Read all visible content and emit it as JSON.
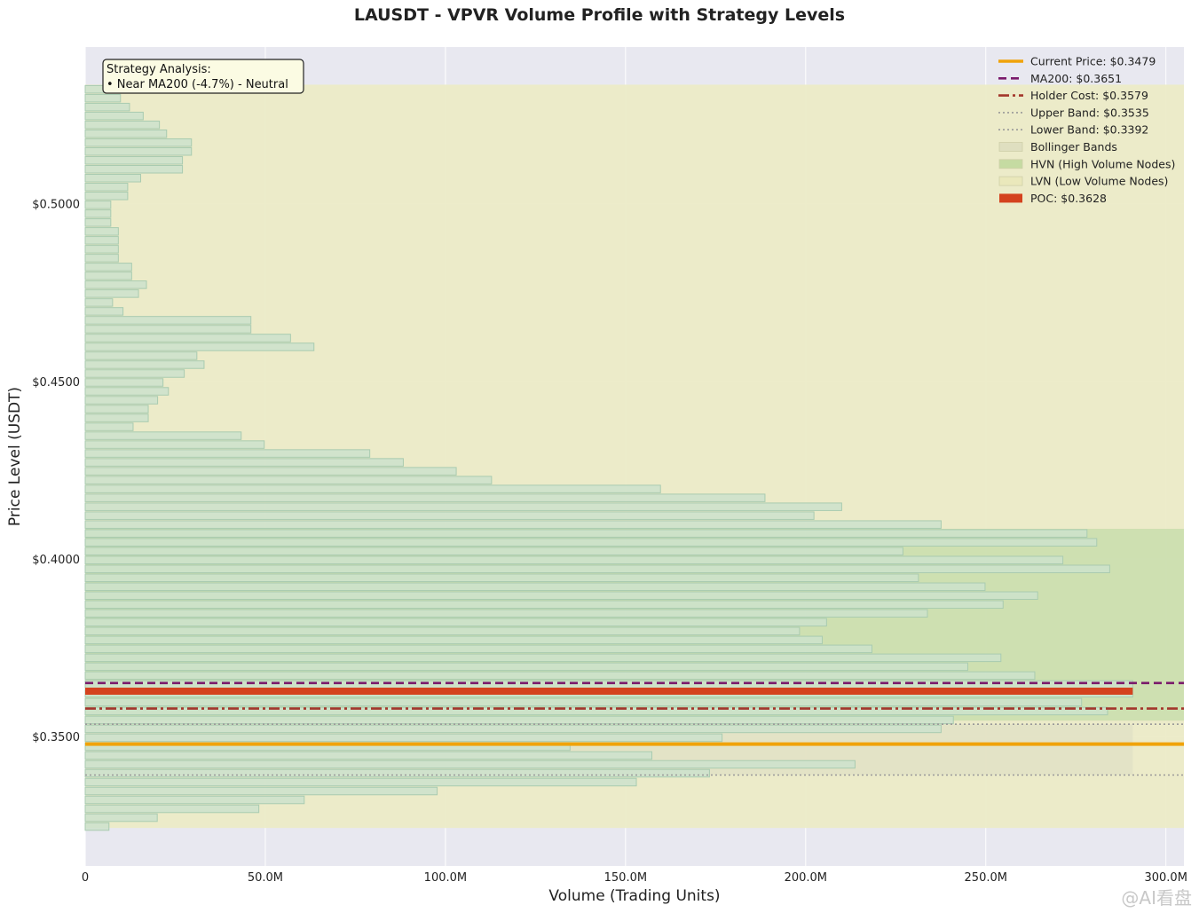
{
  "title": "LAUSDT - VPVR Volume Profile with Strategy Levels",
  "watermark": "@AI看盘",
  "chart_data": {
    "type": "bar",
    "orientation": "horizontal",
    "title": "LAUSDT - VPVR Volume Profile with Strategy Levels",
    "xlabel": "Volume (Trading Units)",
    "ylabel": "Price Level (USDT)",
    "xlim": [
      0,
      305000000
    ],
    "ylim": [
      0.3136,
      0.5441
    ],
    "x_ticks": [
      0,
      50000000,
      100000000,
      150000000,
      200000000,
      250000000,
      300000000
    ],
    "x_tick_labels": [
      "0",
      "50.0M",
      "100.0M",
      "150.0M",
      "200.0M",
      "250.0M",
      "300.0M"
    ],
    "y_ticks": [
      0.35,
      0.4,
      0.45,
      0.5
    ],
    "y_tick_labels": [
      "$0.3500",
      "$0.4000",
      "$0.4500",
      "$0.5000"
    ],
    "grid": true,
    "legend_position": "top-right",
    "bin_height": 0.0025,
    "bins": [
      {
        "price": 0.5322,
        "volume": 6800000
      },
      {
        "price": 0.5297,
        "volume": 9800000
      },
      {
        "price": 0.5272,
        "volume": 12300000
      },
      {
        "price": 0.5247,
        "volume": 16100000
      },
      {
        "price": 0.5222,
        "volume": 20600000
      },
      {
        "price": 0.5197,
        "volume": 22600000
      },
      {
        "price": 0.5172,
        "volume": 29500000
      },
      {
        "price": 0.5147,
        "volume": 29500000
      },
      {
        "price": 0.5122,
        "volume": 27000000
      },
      {
        "price": 0.5097,
        "volume": 27000000
      },
      {
        "price": 0.5072,
        "volume": 15400000
      },
      {
        "price": 0.5047,
        "volume": 11800000
      },
      {
        "price": 0.5022,
        "volume": 11800000
      },
      {
        "price": 0.4997,
        "volume": 7100000
      },
      {
        "price": 0.4972,
        "volume": 7100000
      },
      {
        "price": 0.4947,
        "volume": 7100000
      },
      {
        "price": 0.4922,
        "volume": 9200000
      },
      {
        "price": 0.4897,
        "volume": 9200000
      },
      {
        "price": 0.4872,
        "volume": 9200000
      },
      {
        "price": 0.4847,
        "volume": 9200000
      },
      {
        "price": 0.4822,
        "volume": 12900000
      },
      {
        "price": 0.4797,
        "volume": 12900000
      },
      {
        "price": 0.4772,
        "volume": 17000000
      },
      {
        "price": 0.4747,
        "volume": 14800000
      },
      {
        "price": 0.4722,
        "volume": 7600000
      },
      {
        "price": 0.4697,
        "volume": 10500000
      },
      {
        "price": 0.4672,
        "volume": 46000000
      },
      {
        "price": 0.4647,
        "volume": 46000000
      },
      {
        "price": 0.4622,
        "volume": 57000000
      },
      {
        "price": 0.4597,
        "volume": 63500000
      },
      {
        "price": 0.4572,
        "volume": 31000000
      },
      {
        "price": 0.4547,
        "volume": 33000000
      },
      {
        "price": 0.4522,
        "volume": 27500000
      },
      {
        "price": 0.4497,
        "volume": 21600000
      },
      {
        "price": 0.4472,
        "volume": 23100000
      },
      {
        "price": 0.4447,
        "volume": 20100000
      },
      {
        "price": 0.4422,
        "volume": 17500000
      },
      {
        "price": 0.4397,
        "volume": 17500000
      },
      {
        "price": 0.4372,
        "volume": 13300000
      },
      {
        "price": 0.4347,
        "volume": 43300000
      },
      {
        "price": 0.4322,
        "volume": 49700000
      },
      {
        "price": 0.4297,
        "volume": 79000000
      },
      {
        "price": 0.4272,
        "volume": 88300000
      },
      {
        "price": 0.4247,
        "volume": 103000000
      },
      {
        "price": 0.4222,
        "volume": 112800000
      },
      {
        "price": 0.4197,
        "volume": 159700000
      },
      {
        "price": 0.4172,
        "volume": 188700000
      },
      {
        "price": 0.4147,
        "volume": 210000000
      },
      {
        "price": 0.4122,
        "volume": 202300000
      },
      {
        "price": 0.4097,
        "volume": 237600000
      },
      {
        "price": 0.4072,
        "volume": 278100000
      },
      {
        "price": 0.4047,
        "volume": 280800000
      },
      {
        "price": 0.4022,
        "volume": 227000000
      },
      {
        "price": 0.3997,
        "volume": 271400000
      },
      {
        "price": 0.3972,
        "volume": 284400000
      },
      {
        "price": 0.3947,
        "volume": 231300000
      },
      {
        "price": 0.3922,
        "volume": 249800000
      },
      {
        "price": 0.3897,
        "volume": 264400000
      },
      {
        "price": 0.3872,
        "volume": 254800000
      },
      {
        "price": 0.3847,
        "volume": 233800000
      },
      {
        "price": 0.3822,
        "volume": 205800000
      },
      {
        "price": 0.3797,
        "volume": 198300000
      },
      {
        "price": 0.3772,
        "volume": 204600000
      },
      {
        "price": 0.3747,
        "volume": 218400000
      },
      {
        "price": 0.3722,
        "volume": 254200000
      },
      {
        "price": 0.3697,
        "volume": 245000000
      },
      {
        "price": 0.3672,
        "volume": 263600000
      },
      {
        "price": 0.3647,
        "volume": 290800000
      },
      {
        "price": 0.3622,
        "volume": 290800000
      },
      {
        "price": 0.3597,
        "volume": 276600000
      },
      {
        "price": 0.3572,
        "volume": 283800000
      },
      {
        "price": 0.3547,
        "volume": 241000000
      },
      {
        "price": 0.3522,
        "volume": 237600000
      },
      {
        "price": 0.3497,
        "volume": 176800000
      },
      {
        "price": 0.3472,
        "volume": 134600000
      },
      {
        "price": 0.3447,
        "volume": 157300000
      },
      {
        "price": 0.3422,
        "volume": 213700000
      },
      {
        "price": 0.3397,
        "volume": 173300000
      },
      {
        "price": 0.3372,
        "volume": 153000000
      },
      {
        "price": 0.3347,
        "volume": 97700000
      },
      {
        "price": 0.3322,
        "volume": 60800000
      },
      {
        "price": 0.3297,
        "volume": 48200000
      },
      {
        "price": 0.3272,
        "volume": 20000000
      },
      {
        "price": 0.3247,
        "volume": 6600000
      }
    ],
    "zones": {
      "lvn": [
        0.3243,
        0.5335
      ],
      "hvn": [
        0.3545,
        0.4085
      ],
      "bollinger": [
        0.3392,
        0.3535
      ]
    },
    "bollinger_extent_volume": 290800000,
    "poc_extent_volume": 290800000,
    "levels": [
      {
        "name": "Current Price",
        "value": 0.3479,
        "label": "Current Price: $0.3479",
        "color": "#f0a30a",
        "style": "solid"
      },
      {
        "name": "MA200",
        "value": 0.3651,
        "label": "MA200: $0.3651",
        "color": "#7a1a6b",
        "style": "dashed"
      },
      {
        "name": "Holder Cost",
        "value": 0.3579,
        "label": "Holder Cost: $0.3579",
        "color": "#a3362b",
        "style": "dashdot"
      },
      {
        "name": "Upper Band",
        "value": 0.3535,
        "label": "Upper Band: $0.3535",
        "color": "#999999",
        "style": "dotted"
      },
      {
        "name": "Lower Band",
        "value": 0.3392,
        "label": "Lower Band: $0.3392",
        "color": "#999999",
        "style": "dotted"
      }
    ],
    "poc": {
      "value": 0.3628,
      "label": "POC: $0.3628",
      "color": "#d4421e"
    },
    "legend": [
      {
        "label": "Current Price: $0.3479",
        "kind": "line",
        "color": "#f0a30a",
        "style": "solid"
      },
      {
        "label": "MA200: $0.3651",
        "kind": "line",
        "color": "#7a1a6b",
        "style": "dashed"
      },
      {
        "label": "Holder Cost: $0.3579",
        "kind": "line",
        "color": "#a3362b",
        "style": "dashdot"
      },
      {
        "label": "Upper Band: $0.3535",
        "kind": "line",
        "color": "#999999",
        "style": "dotted"
      },
      {
        "label": "Lower Band: $0.3392",
        "kind": "line",
        "color": "#999999",
        "style": "dotted"
      },
      {
        "label": "Bollinger Bands",
        "kind": "patch",
        "color": "#dfdfc0"
      },
      {
        "label": "HVN (High Volume Nodes)",
        "kind": "patch",
        "color": "#c5dba2"
      },
      {
        "label": "LVN (Low Volume Nodes)",
        "kind": "patch",
        "color": "#eae8bb"
      },
      {
        "label": "POC: $0.3628",
        "kind": "patch",
        "color": "#d4421e"
      }
    ],
    "annotation": {
      "title": "Strategy Analysis:",
      "text": "• Near MA200 (-4.7%) - Neutral"
    },
    "colors": {
      "plot_background": "#e8e8f0",
      "bar_fill": "#cde2cd",
      "bar_edge": "#a9cbb0",
      "lvn_fill": "#eceac6",
      "hvn_fill": "#ccdfb0",
      "bollinger_fill": "#e2e2c5"
    }
  }
}
